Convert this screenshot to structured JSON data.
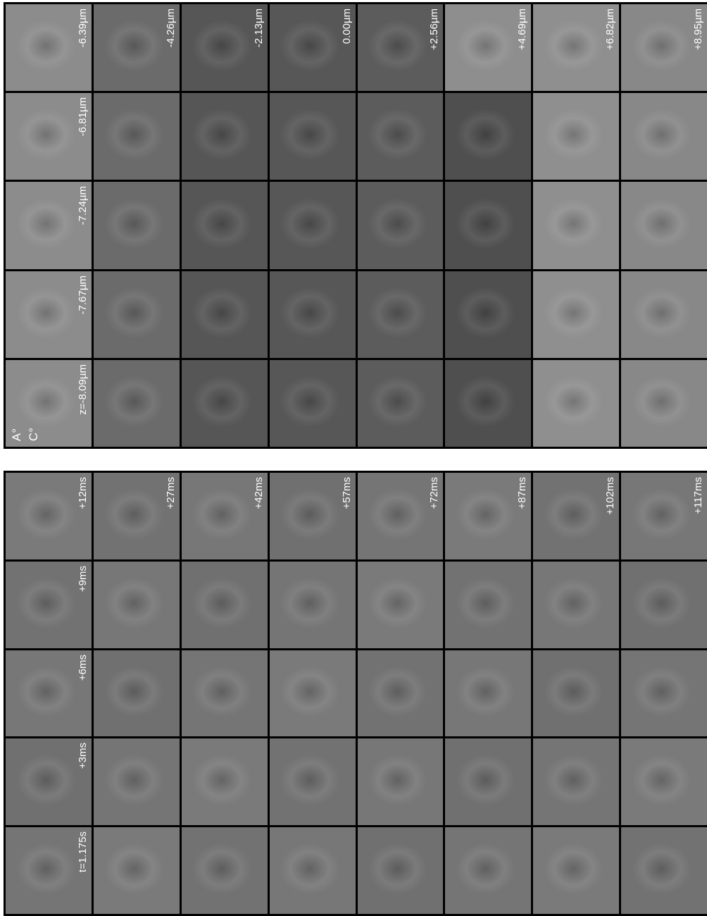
{
  "top_panel": {
    "column_labels": [
      "-6.39µm",
      "-4.26µm",
      "-2.13µm",
      "0.00µm",
      "+2.56µm",
      "+4.69µm",
      "+6.82µm",
      "+8.95µm"
    ],
    "row_labels": [
      "-6.81µm",
      "-7.24µm",
      "-7.67µm",
      "z=-8.09µm"
    ],
    "annotations": [
      "A°",
      "C°"
    ]
  },
  "bottom_panel": {
    "column_labels": [
      "+12ms",
      "+27ms",
      "+42ms",
      "+57ms",
      "+72ms",
      "+87ms",
      "+102ms",
      "+117ms"
    ],
    "row_labels": [
      "+9ms",
      "+6ms",
      "+3ms",
      "t=1.175s"
    ]
  }
}
